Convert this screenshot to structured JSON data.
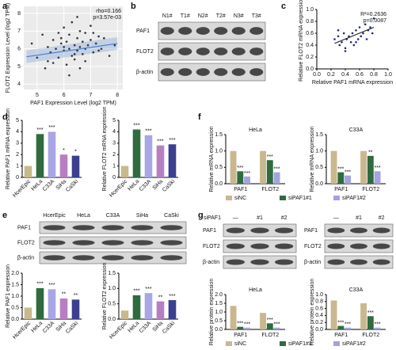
{
  "panel_labels": [
    "a",
    "b",
    "c",
    "d",
    "e",
    "f",
    "g"
  ],
  "blots": [
    {
      "columns": [
        "N1#",
        "T1#",
        "N2#",
        "T2#",
        "N3#",
        "T3#"
      ],
      "rows": [
        "PAF1",
        "FLOT2",
        "β-actin"
      ]
    },
    {
      "columns": [
        "HcerEpic",
        "HeLa",
        "C33A",
        "SiHa",
        "CaSki"
      ],
      "rows": [
        "PAF1",
        "FLOT2",
        "β-actin"
      ]
    },
    {
      "header_label": "siPAF1",
      "columns": [
        "—",
        "#1",
        "#2"
      ],
      "rows": [
        "PAF1",
        "FLOT2",
        "β-actin"
      ]
    },
    {
      "columns": [
        "—",
        "#1",
        "#2"
      ],
      "rows": [
        "PAF1",
        "FLOT2",
        "β-actin"
      ]
    }
  ],
  "chart_data": [
    {
      "type": "scatter",
      "x_label": "PAF1 Expression Level (log2 TPM)",
      "y_label": "FLOT2 Expression Level (log2 TPM)",
      "annotations": [
        "rho=0.166",
        "p=3.57e-03"
      ],
      "grid": true,
      "color": "#333333",
      "fit_color": "#4a7fd0",
      "x": [
        4.8,
        5.0,
        5.2,
        5.3,
        5.4,
        5.5,
        5.6,
        5.6,
        5.7,
        5.8,
        5.8,
        5.9,
        6.0,
        6.0,
        6.1,
        6.1,
        6.2,
        6.2,
        6.3,
        6.3,
        6.4,
        6.4,
        6.5,
        6.5,
        6.6,
        6.6,
        6.7,
        6.7,
        6.8,
        6.8,
        6.9,
        7.0,
        7.0,
        7.1,
        7.2,
        7.3,
        7.4,
        7.5,
        7.7,
        7.9,
        6.2,
        6.5,
        5.9,
        6.8,
        7.1,
        6.0,
        6.4,
        5.4,
        7.3,
        6.6
      ],
      "values": [
        6.3,
        5.5,
        6.8,
        4.9,
        6.1,
        5.8,
        6.5,
        5.2,
        6.0,
        6.9,
        5.5,
        6.3,
        5.9,
        7.2,
        6.4,
        5.1,
        6.0,
        6.8,
        5.6,
        7.5,
        6.2,
        5.4,
        6.6,
        5.9,
        6.1,
        7.0,
        5.7,
        6.4,
        6.9,
        5.3,
        6.2,
        6.5,
        7.3,
        5.8,
        6.3,
        6.7,
        6.0,
        6.6,
        5.6,
        6.2,
        4.5,
        7.8,
        6.6,
        6.0,
        6.9,
        6.1,
        5.7,
        5.3,
        5.9,
        4.9
      ],
      "fit": {
        "x": [
          4.6,
          8.0
        ],
        "values": [
          5.55,
          6.3
        ]
      },
      "xlim": [
        4.5,
        8.2
      ],
      "xticks": [
        5,
        6,
        7,
        8
      ],
      "ylim": [
        3.7,
        8.4
      ],
      "yticks": [
        4,
        5,
        6,
        7,
        8
      ]
    },
    {
      "type": "scatter",
      "x_label": "Relative PAF1 mRNA expression",
      "y_label": "Relative FLOT2 mRNA expression",
      "annotations": [
        "R²=0.2636",
        "p=0.0087"
      ],
      "grid": false,
      "color": "#1e2a78",
      "fit_color": "#222222",
      "x": [
        0.25,
        0.3,
        0.32,
        0.35,
        0.38,
        0.4,
        0.42,
        0.45,
        0.48,
        0.5,
        0.52,
        0.55,
        0.58,
        0.6,
        0.62,
        0.65,
        0.68,
        0.7,
        0.72,
        0.75,
        0.78,
        0.8,
        0.4,
        0.55,
        0.3
      ],
      "values": [
        0.5,
        0.55,
        0.4,
        0.45,
        0.6,
        0.35,
        0.5,
        0.55,
        0.45,
        0.6,
        0.4,
        0.65,
        0.5,
        0.7,
        0.55,
        0.6,
        0.75,
        0.5,
        0.65,
        0.7,
        0.6,
        0.85,
        0.3,
        0.45,
        0.65
      ],
      "fit": {
        "x": [
          0.25,
          0.8
        ],
        "values": [
          0.43,
          0.7
        ]
      },
      "xlim": [
        0,
        1
      ],
      "xticks": [
        {
          "value": 0,
          "label": "0.0"
        },
        0.2,
        0.4,
        0.6,
        0.8,
        {
          "value": 1,
          "label": "1.0"
        }
      ],
      "ylim": [
        0,
        1
      ],
      "yticks": [
        {
          "value": 0,
          "label": "0.0"
        },
        0.2,
        0.4,
        0.6,
        0.8,
        {
          "value": 1,
          "label": "1.0"
        }
      ]
    },
    {
      "type": "bar",
      "y_label": "Relative PAF1 mRNA expression",
      "categories": [
        "HcerEpic",
        "HeLa",
        "C33A",
        "SiHa",
        "CaSki"
      ],
      "values": [
        1,
        3.8,
        4.0,
        2.0,
        1.9
      ],
      "annotations": [
        "",
        "***",
        "***",
        "*",
        "*"
      ],
      "colors": [
        "#c8b98c",
        "#2f6b3f",
        "#a9a6e6",
        "#b77fc2",
        "#3b3f8f"
      ],
      "ylim": [
        0,
        5
      ],
      "yticks": [
        0,
        1,
        2,
        3,
        4,
        5
      ]
    },
    {
      "type": "bar",
      "y_label": "Relative FLOT2 mRNA expression",
      "categories": [
        "HcerEpic",
        "HeLa",
        "C33A",
        "SiHa",
        "CaSki"
      ],
      "values": [
        1,
        4.2,
        3.7,
        2.8,
        2.9
      ],
      "annotations": [
        "",
        "***",
        "***",
        "***",
        "***"
      ],
      "colors": [
        "#c8b98c",
        "#2f6b3f",
        "#a9a6e6",
        "#b77fc2",
        "#3b3f8f"
      ],
      "ylim": [
        0,
        5
      ],
      "yticks": [
        0,
        1,
        2,
        3,
        4,
        5
      ]
    },
    {
      "type": "bar",
      "y_label": "Relative PAF1 expression",
      "categories": [
        "HcerEpic",
        "HeLa",
        "C33A",
        "SiHa",
        "CaSki"
      ],
      "values": [
        0.5,
        1.35,
        1.3,
        0.9,
        0.85
      ],
      "annotations": [
        "",
        "***",
        "***",
        "**",
        "**"
      ],
      "colors": [
        "#c8b98c",
        "#2f6b3f",
        "#a9a6e6",
        "#b77fc2",
        "#3b3f8f"
      ],
      "ylim": [
        0,
        2
      ],
      "yticks": [
        {
          "value": 0,
          "label": "0.0"
        },
        0.5,
        {
          "value": 1,
          "label": "1.0"
        },
        1.5,
        {
          "value": 2,
          "label": "2.0"
        }
      ]
    },
    {
      "type": "bar",
      "y_label": "Relative FLOT2 expression",
      "categories": [
        "HcerEpic",
        "HeLa",
        "C33A",
        "SiHa",
        "CaSki"
      ],
      "values": [
        0.28,
        0.78,
        0.85,
        0.58,
        0.62
      ],
      "annotations": [
        "",
        "***",
        "***",
        "**",
        "***"
      ],
      "colors": [
        "#c8b98c",
        "#2f6b3f",
        "#a9a6e6",
        "#b77fc2",
        "#3b3f8f"
      ],
      "ylim": [
        0,
        1.5
      ],
      "yticks": [
        {
          "value": 0,
          "label": "0.0"
        },
        0.5,
        {
          "value": 1,
          "label": "1.0"
        },
        1.5
      ]
    },
    {
      "type": "grouped_bar",
      "title": "HeLa",
      "y_label": "Relative mRNA expression",
      "categories": [
        "PAF1",
        "FLOT2"
      ],
      "ylim": [
        0,
        1.5
      ],
      "yticks": [
        {
          "value": 0,
          "label": "0.0"
        },
        0.5,
        {
          "value": 1,
          "label": "1.0"
        },
        1.5
      ],
      "series": [
        {
          "name": "siNC",
          "color": "#c9b88f",
          "values": [
            1,
            1
          ]
        },
        {
          "name": "siPAF1#1",
          "color": "#2f6b3f",
          "values": [
            0.38,
            0.72
          ],
          "annotations": [
            "***",
            "***"
          ]
        },
        {
          "name": "siPAF1#2",
          "color": "#a3a3e0",
          "values": [
            0.22,
            0.35
          ],
          "annotations": [
            "***",
            "***"
          ]
        }
      ]
    },
    {
      "type": "grouped_bar",
      "title": "C33A",
      "y_label": "Relative mRNA expression",
      "categories": [
        "PAF1",
        "FLOT2"
      ],
      "ylim": [
        0,
        1.5
      ],
      "yticks": [
        {
          "value": 0,
          "label": "0.0"
        },
        0.5,
        {
          "value": 1,
          "label": "1.0"
        },
        1.5
      ],
      "series": [
        {
          "color": "#c9b88f",
          "values": [
            1,
            1
          ]
        },
        {
          "color": "#2f6b3f",
          "values": [
            0.35,
            0.85
          ],
          "annotations": [
            "***",
            "**"
          ]
        },
        {
          "color": "#a3a3e0",
          "values": [
            0.25,
            0.38
          ],
          "annotations": [
            "***",
            "***"
          ]
        }
      ]
    },
    {
      "type": "grouped_bar",
      "title": "HeLa",
      "y_label": "Relative protein expression",
      "categories": [
        "PAF1",
        "FLOT2"
      ],
      "ylim": [
        0,
        2
      ],
      "yticks": [
        {
          "value": 0,
          "label": "0.0"
        },
        0.5,
        {
          "value": 1,
          "label": "1.0"
        },
        1.5,
        {
          "value": 2,
          "label": "2.0"
        }
      ],
      "series": [
        {
          "name": "siNC",
          "color": "#c9b88f",
          "values": [
            1.35,
            0.95
          ]
        },
        {
          "name": "siPAF1#1",
          "color": "#2f6b3f",
          "values": [
            0.15,
            0.35
          ],
          "annotations": [
            "***",
            "***"
          ]
        },
        {
          "name": "siPAF1#2",
          "color": "#a3a3e0",
          "values": [
            0.1,
            0.1
          ],
          "annotations": [
            "***",
            "***"
          ]
        }
      ]
    },
    {
      "type": "grouped_bar",
      "title": "C33A",
      "y_label": "Relative protein expression",
      "categories": [
        "PAF1",
        "FLOT2"
      ],
      "ylim": [
        0,
        1
      ],
      "yticks": [
        {
          "value": 0,
          "label": "0.0"
        },
        0.2,
        0.4,
        0.6,
        0.8,
        {
          "value": 1,
          "label": "1.0"
        }
      ],
      "series": [
        {
          "color": "#c9b88f",
          "values": [
            0.83,
            0.75
          ]
        },
        {
          "color": "#2f6b3f",
          "values": [
            0.1,
            0.38
          ],
          "annotations": [
            "***",
            "***"
          ]
        },
        {
          "color": "#a3a3e0",
          "values": [
            0.05,
            0.05
          ],
          "annotations": [
            "***",
            "***"
          ]
        }
      ]
    }
  ]
}
